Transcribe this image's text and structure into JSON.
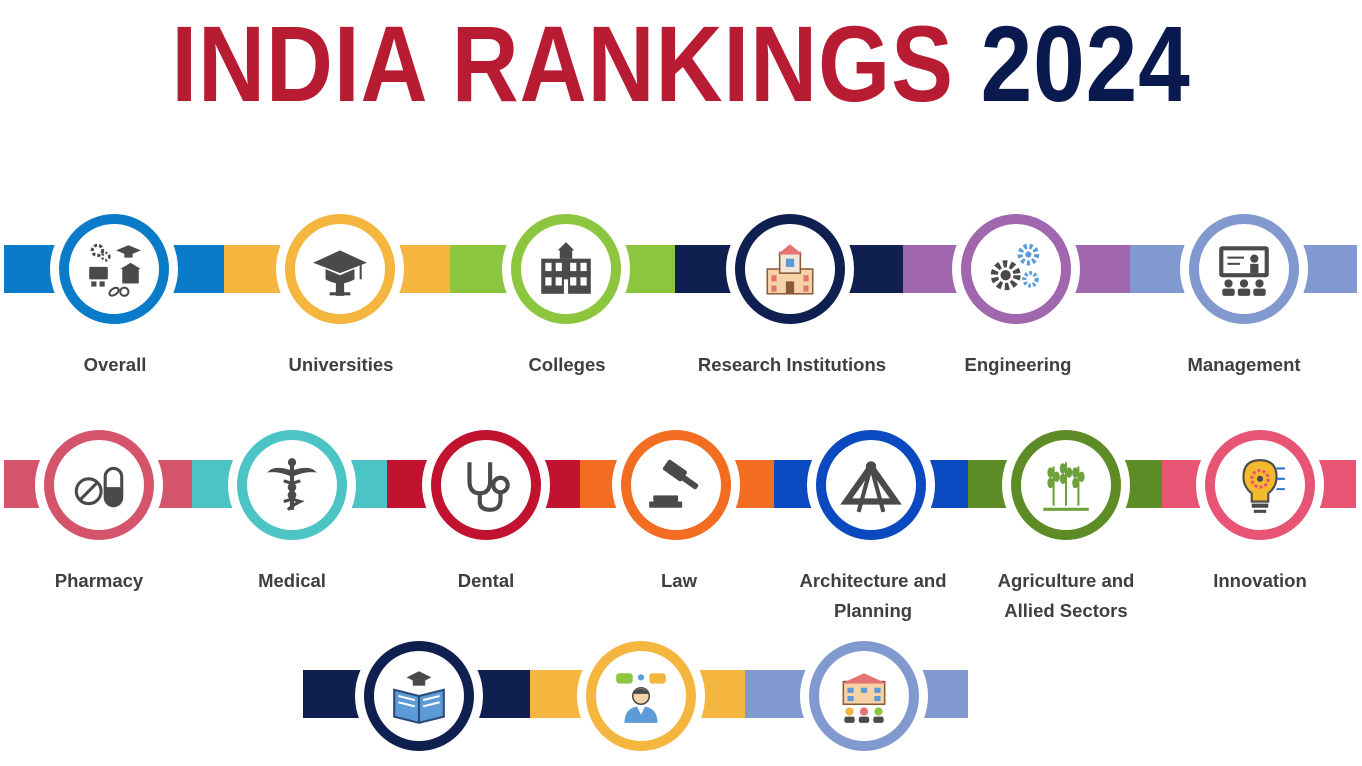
{
  "header": {
    "title_main": "INDIA RANKINGS",
    "title_year": "2024"
  },
  "colors": {
    "title_red": "#B71C32",
    "title_navy": "#0B1A4E",
    "overall": "#0A7BC8",
    "universities": "#F4B63F",
    "colleges": "#8CC63F",
    "research": "#0F2050",
    "engineering": "#A066AE",
    "management": "#8199CF",
    "pharmacy": "#D4556B",
    "medical": "#4CC4C6",
    "dental": "#C1122F",
    "law": "#F26C22",
    "architecture": "#0B49C1",
    "agriculture": "#5D8B26",
    "innovation": "#E85474",
    "label_gray": "#3f3f3f",
    "icon_gray": "#4a4a4a"
  },
  "categories": {
    "row1": [
      {
        "label": "Overall",
        "icon": "overall-collage-icon"
      },
      {
        "label": "Universities",
        "icon": "graduation-cap-icon"
      },
      {
        "label": "Colleges",
        "icon": "college-building-icon"
      },
      {
        "label": "Research Institutions",
        "icon": "microscope-lab-icon"
      },
      {
        "label": "Engineering",
        "icon": "gears-icon"
      },
      {
        "label": "Management",
        "icon": "presentation-board-icon"
      }
    ],
    "row2": [
      {
        "label": "Pharmacy",
        "icon": "pills-icon"
      },
      {
        "label": "Medical",
        "icon": "caduceus-icon"
      },
      {
        "label": "Dental",
        "icon": "stethoscope-icon"
      },
      {
        "label": "Law",
        "icon": "gavel-icon"
      },
      {
        "label": "Architecture and Planning",
        "label_line1": "Architecture and",
        "label_line2": "Planning",
        "icon": "compass-square-icon"
      },
      {
        "label": "Agriculture and Allied Sectors",
        "label_line1": "Agriculture and",
        "label_line2": "Allied Sectors",
        "icon": "wheat-icon"
      },
      {
        "label": "Innovation",
        "icon": "lightbulb-circuit-icon"
      }
    ],
    "row3": [
      {
        "icon": "open-book-cap-icon"
      },
      {
        "icon": "teacher-collaboration-icon"
      },
      {
        "icon": "school-building-people-icon"
      }
    ]
  }
}
